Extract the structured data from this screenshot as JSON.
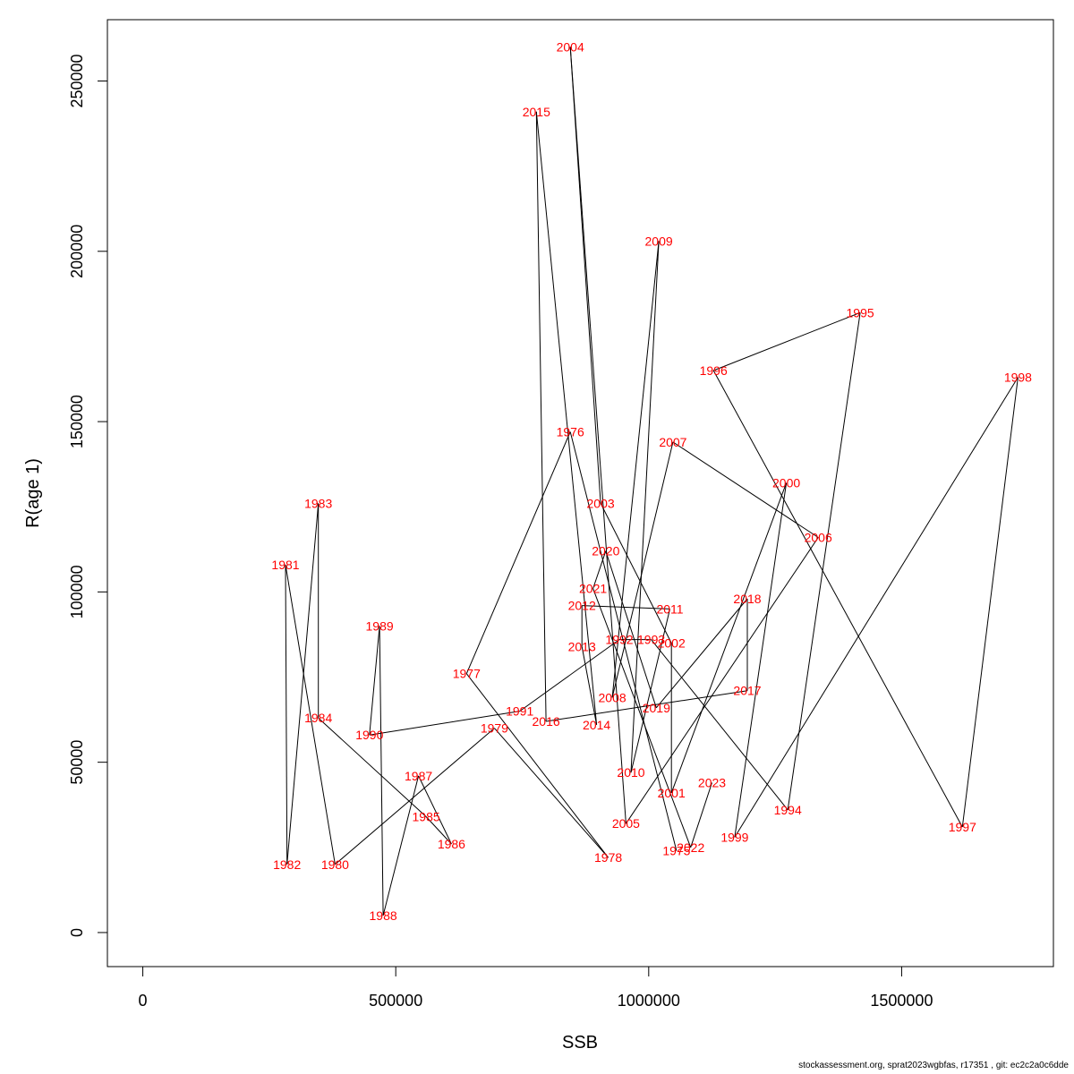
{
  "chart_data": {
    "type": "scatter",
    "title": "",
    "xlabel": "SSB",
    "ylabel": "R(age 1)",
    "xlim": [
      -70000,
      1800000
    ],
    "ylim": [
      -10000,
      268000
    ],
    "x_ticks": [
      0,
      500000,
      1000000,
      1500000
    ],
    "x_tick_labels": [
      "0",
      "500000",
      "1000000",
      "1500000"
    ],
    "y_ticks": [
      0,
      50000,
      100000,
      150000,
      200000,
      250000
    ],
    "y_tick_labels": [
      "0",
      "50000",
      "100000",
      "150000",
      "200000",
      "250000"
    ],
    "line_color": "#000000",
    "label_color": "#ff0000",
    "points": [
      {
        "year": "1975",
        "ssb": 1055000,
        "r": 24000
      },
      {
        "year": "1976",
        "ssb": 845000,
        "r": 147000
      },
      {
        "year": "1977",
        "ssb": 640000,
        "r": 76000
      },
      {
        "year": "1978",
        "ssb": 920000,
        "r": 22000
      },
      {
        "year": "1979",
        "ssb": 695000,
        "r": 60000
      },
      {
        "year": "1980",
        "ssb": 380000,
        "r": 20000
      },
      {
        "year": "1981",
        "ssb": 282000,
        "r": 108000
      },
      {
        "year": "1982",
        "ssb": 285000,
        "r": 20000
      },
      {
        "year": "1983",
        "ssb": 347000,
        "r": 126000
      },
      {
        "year": "1984",
        "ssb": 347000,
        "r": 63000
      },
      {
        "year": "1985",
        "ssb": 560000,
        "r": 34000
      },
      {
        "year": "1986",
        "ssb": 610000,
        "r": 26000
      },
      {
        "year": "1987",
        "ssb": 545000,
        "r": 46000
      },
      {
        "year": "1988",
        "ssb": 475000,
        "r": 5000
      },
      {
        "year": "1989",
        "ssb": 468000,
        "r": 90000
      },
      {
        "year": "1990",
        "ssb": 448000,
        "r": 58000
      },
      {
        "year": "1991",
        "ssb": 745000,
        "r": 65000
      },
      {
        "year": "1992",
        "ssb": 942000,
        "r": 86000
      },
      {
        "year": "1993",
        "ssb": 1005000,
        "r": 86000
      },
      {
        "year": "1994",
        "ssb": 1275000,
        "r": 36000
      },
      {
        "year": "1995",
        "ssb": 1418000,
        "r": 182000
      },
      {
        "year": "1996",
        "ssb": 1128000,
        "r": 165000
      },
      {
        "year": "1997",
        "ssb": 1620000,
        "r": 31000
      },
      {
        "year": "1998",
        "ssb": 1730000,
        "r": 163000
      },
      {
        "year": "1999",
        "ssb": 1170000,
        "r": 28000
      },
      {
        "year": "2000",
        "ssb": 1272000,
        "r": 132000
      },
      {
        "year": "2001",
        "ssb": 1045000,
        "r": 41000
      },
      {
        "year": "2002",
        "ssb": 1045000,
        "r": 85000
      },
      {
        "year": "2003",
        "ssb": 905000,
        "r": 126000
      },
      {
        "year": "2004",
        "ssb": 845000,
        "r": 260000
      },
      {
        "year": "2005",
        "ssb": 955000,
        "r": 32000
      },
      {
        "year": "2006",
        "ssb": 1335000,
        "r": 116000
      },
      {
        "year": "2007",
        "ssb": 1048000,
        "r": 144000
      },
      {
        "year": "2008",
        "ssb": 928000,
        "r": 69000
      },
      {
        "year": "2009",
        "ssb": 1020000,
        "r": 203000
      },
      {
        "year": "2010",
        "ssb": 965000,
        "r": 47000
      },
      {
        "year": "2011",
        "ssb": 1042000,
        "r": 95000
      },
      {
        "year": "2012",
        "ssb": 868000,
        "r": 96000
      },
      {
        "year": "2013",
        "ssb": 868000,
        "r": 84000
      },
      {
        "year": "2014",
        "ssb": 897000,
        "r": 61000
      },
      {
        "year": "2015",
        "ssb": 778000,
        "r": 241000
      },
      {
        "year": "2016",
        "ssb": 797000,
        "r": 62000
      },
      {
        "year": "2017",
        "ssb": 1195000,
        "r": 71000
      },
      {
        "year": "2018",
        "ssb": 1195000,
        "r": 98000
      },
      {
        "year": "2019",
        "ssb": 1015000,
        "r": 66000
      },
      {
        "year": "2020",
        "ssb": 915000,
        "r": 112000
      },
      {
        "year": "2021",
        "ssb": 890000,
        "r": 101000
      },
      {
        "year": "2022",
        "ssb": 1083000,
        "r": 25000
      },
      {
        "year": "2023",
        "ssb": 1125000,
        "r": 44000
      }
    ]
  },
  "footer": {
    "text": "stockassessment.org, sprat2023wgbfas, r17351 , git: ec2c2a0c6dde"
  }
}
